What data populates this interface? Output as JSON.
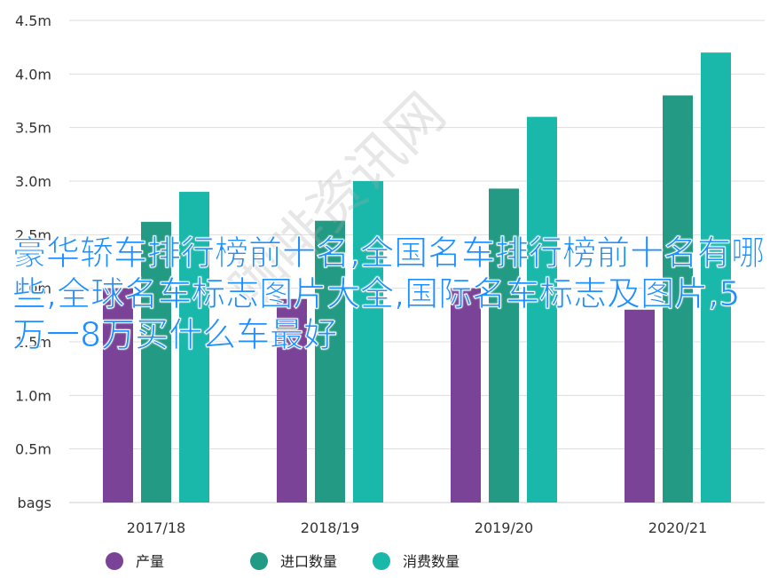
{
  "chart_data": {
    "type": "bar",
    "categories": [
      "2017/18",
      "2018/19",
      "2019/20",
      "2020/21"
    ],
    "series": [
      {
        "name": "产量",
        "values": [
          2.0,
          1.9,
          2.0,
          1.8
        ]
      },
      {
        "name": "进口数量",
        "values": [
          2.62,
          2.63,
          2.93,
          3.8
        ]
      },
      {
        "name": "消费数量",
        "values": [
          2.9,
          3.0,
          3.6,
          4.2
        ]
      }
    ],
    "y_ticks": [
      "bags",
      "0.5m",
      "1.0m",
      "1.5m",
      "2.0m",
      "2.5m",
      "3.0m",
      "3.5m",
      "4.0m",
      "4.5m"
    ],
    "ylim": [
      0,
      4.5
    ],
    "grid": true,
    "legend_position": "bottom",
    "colors": [
      "#7b4397",
      "#239b84",
      "#19b8aa"
    ]
  },
  "overlay_text": "豪华轿车排行榜前十名,全国名车排行榜前十名有哪些,全球名车标志图片大全,国际名车标志及图片,5万一8万买什么车最好",
  "watermark_text": "咖啡资讯网"
}
